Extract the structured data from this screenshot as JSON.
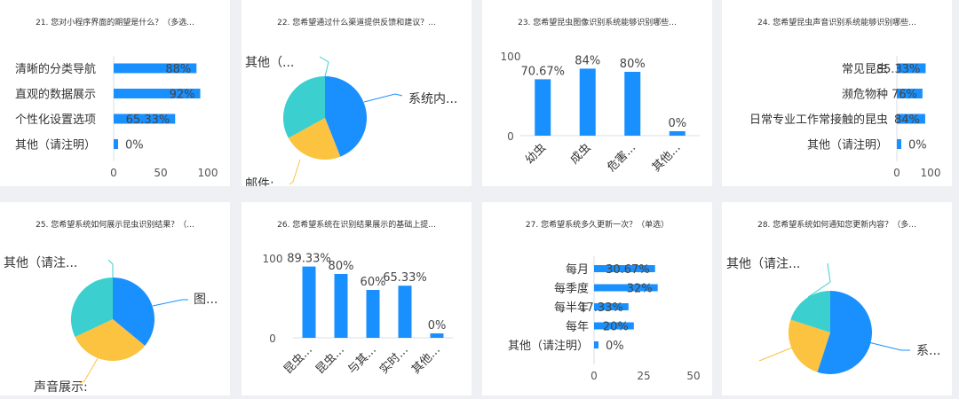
{
  "palette": {
    "bar": "#1890ff",
    "pie_blue": "#1a90ff",
    "pie_yellow": "#fbc33f",
    "pie_teal": "#3ccfcf",
    "axis": "#d9dde3",
    "tick": "#555555"
  },
  "chart_data": [
    {
      "type": "bar",
      "orientation": "horizontal",
      "title": "21. 您对小程序界面的期望是什么？（多选...",
      "categories": [
        "清晰的分类导航",
        "直观的数据展示",
        "个性化设置选项",
        "其他（请注明）"
      ],
      "values": [
        88,
        92,
        65.33,
        0
      ],
      "value_labels": [
        "88%",
        "92%",
        "65.33%",
        "0%"
      ],
      "xlim": [
        0,
        100
      ],
      "xticks": [
        "0",
        "50",
        "100"
      ]
    },
    {
      "type": "pie",
      "title": "22. 您希望通过什么渠道提供反馈和建议？...",
      "slices": [
        {
          "label": "系统内...",
          "value": 44,
          "color": "#1a90ff"
        },
        {
          "label": "邮件: ...",
          "value": 23,
          "color": "#fbc33f"
        },
        {
          "label": "其他（...",
          "value": 33,
          "color": "#3ccfcf"
        }
      ]
    },
    {
      "type": "bar",
      "orientation": "vertical",
      "title": "23. 您希望昆虫图像识别系统能够识别哪些...",
      "categories": [
        "幼虫",
        "成虫",
        "危害...",
        "其他..."
      ],
      "values": [
        70.67,
        84,
        80,
        0
      ],
      "value_labels": [
        "70.67%",
        "84%",
        "80%",
        "0%"
      ],
      "ylim": [
        0,
        100
      ],
      "yticks": [
        "0",
        "100"
      ]
    },
    {
      "type": "bar",
      "orientation": "horizontal",
      "title": "24. 您希望昆虫声音识别系统能够识别哪些...",
      "categories": [
        "常见昆虫",
        "濒危物种",
        "日常专业工作常接触的昆虫",
        "其他（请注明）"
      ],
      "values": [
        85.33,
        76,
        84,
        0
      ],
      "value_labels": [
        "85.33%",
        "76%",
        "84%",
        "0%"
      ],
      "xlim": [
        0,
        100
      ],
      "xticks": [
        "0",
        "100"
      ]
    },
    {
      "type": "pie",
      "title": "25. 您希望系统如何展示昆虫识别结果？（...",
      "slices": [
        {
          "label": "图...",
          "value": 36,
          "color": "#1a90ff"
        },
        {
          "label": "声音展示:",
          "value": 32,
          "color": "#fbc33f"
        },
        {
          "label": "其他（请注...",
          "value": 32,
          "color": "#3ccfcf"
        }
      ]
    },
    {
      "type": "bar",
      "orientation": "vertical",
      "title": "26. 您希望系统在识别结果展示的基础上提...",
      "categories": [
        "昆虫...",
        "昆虫...",
        "与其...",
        "实时...",
        "其他..."
      ],
      "values": [
        89.33,
        80,
        60,
        65.33,
        0
      ],
      "value_labels": [
        "89.33%",
        "80%",
        "60%",
        "65.33%",
        "0%"
      ],
      "ylim": [
        0,
        100
      ],
      "yticks": [
        "0",
        "100"
      ]
    },
    {
      "type": "bar",
      "orientation": "horizontal",
      "title": "27. 您希望系统多久更新一次？（单选）",
      "categories": [
        "每月",
        "每季度",
        "每半年",
        "每年",
        "其他（请注明）"
      ],
      "values": [
        30.67,
        32,
        17.33,
        20,
        0
      ],
      "value_labels": [
        "30.67%",
        "32%",
        "17.33%",
        "20%",
        "0%"
      ],
      "xlim": [
        0,
        50
      ],
      "xticks": [
        "0",
        "25",
        "50"
      ]
    },
    {
      "type": "pie",
      "title": "28. 您希望系统如何通知您更新内容？（多...",
      "slices": [
        {
          "label": "系...",
          "value": 55,
          "color": "#1a90ff"
        },
        {
          "label": "",
          "value": 25,
          "color": "#fbc33f"
        },
        {
          "label": "其他（请注...",
          "value": 20,
          "color": "#3ccfcf"
        }
      ]
    }
  ]
}
